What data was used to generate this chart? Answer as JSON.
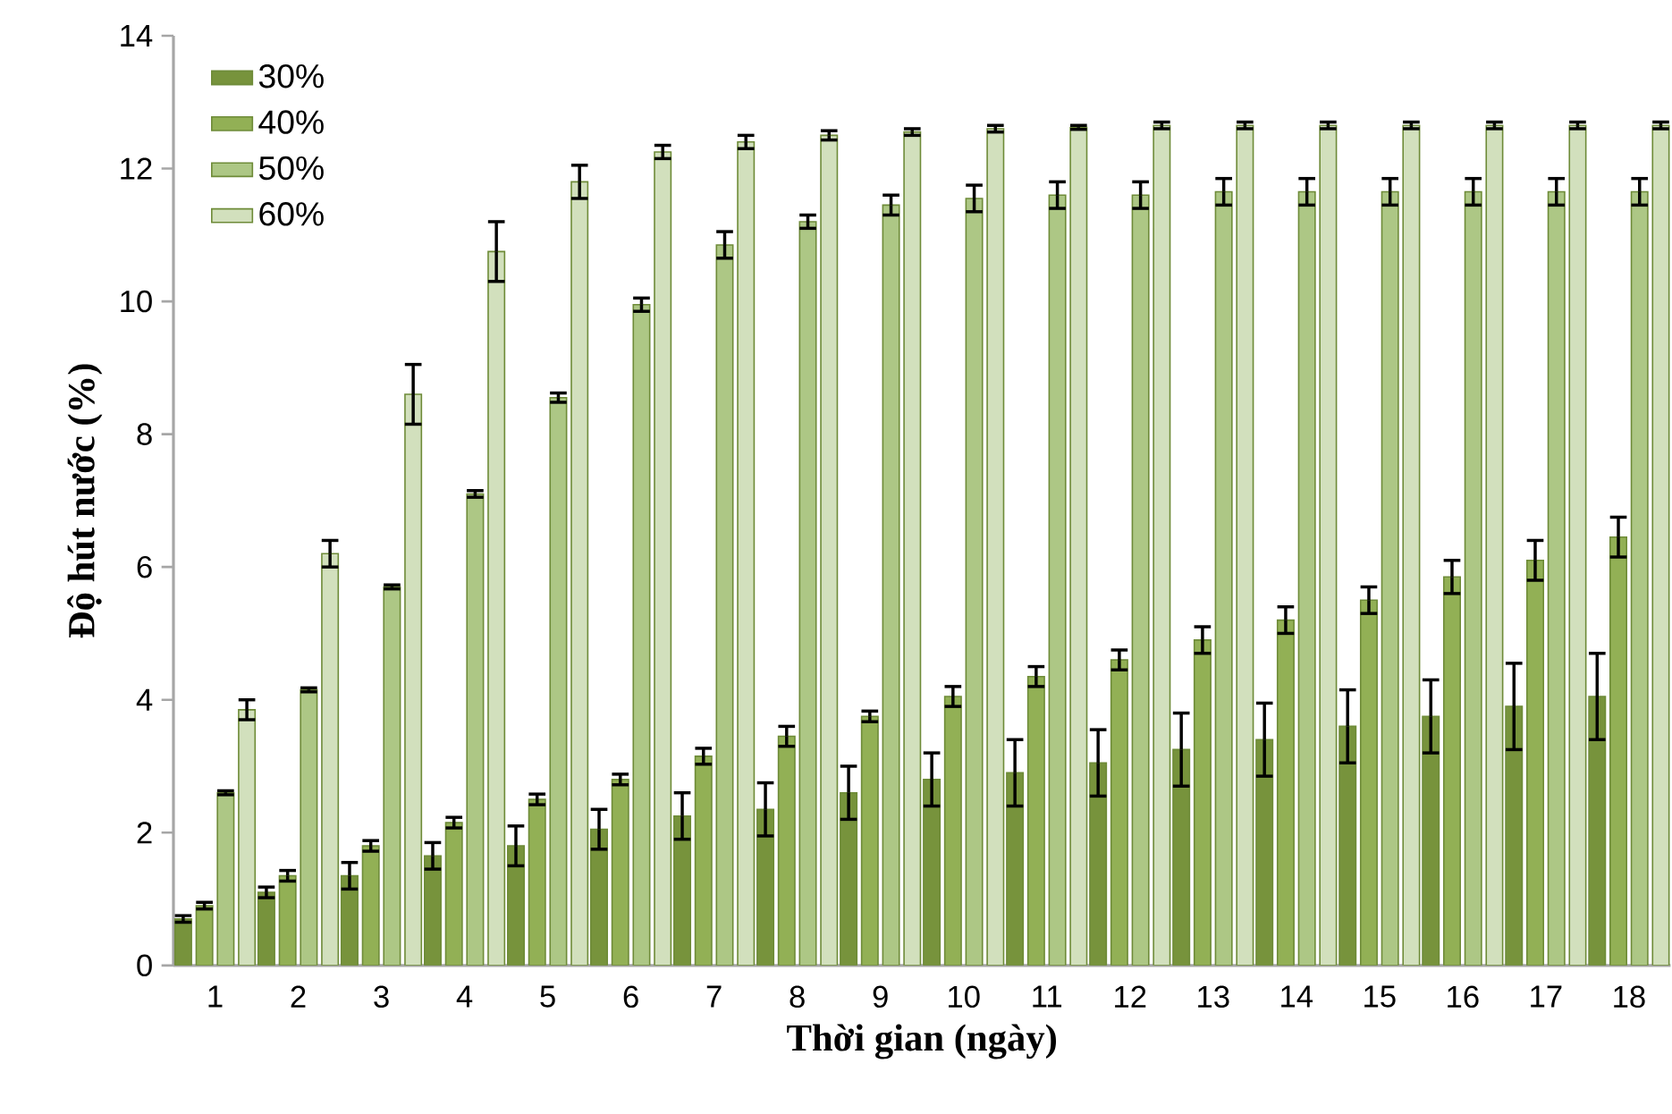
{
  "chart_data": {
    "type": "bar",
    "xlabel": "Thời gian (ngày)",
    "ylabel": "Độ hút nước (%)",
    "categories": [
      "1",
      "2",
      "3",
      "4",
      "5",
      "6",
      "7",
      "8",
      "9",
      "10",
      "11",
      "12",
      "13",
      "14",
      "15",
      "16",
      "17",
      "18"
    ],
    "series": [
      {
        "name": "30%",
        "color": "#77933c",
        "values": [
          0.7,
          1.1,
          1.35,
          1.65,
          1.8,
          2.05,
          2.25,
          2.35,
          2.6,
          2.8,
          2.9,
          3.05,
          3.25,
          3.4,
          3.6,
          3.75,
          3.9,
          4.05
        ],
        "errors": [
          0.05,
          0.08,
          0.2,
          0.2,
          0.3,
          0.3,
          0.35,
          0.4,
          0.4,
          0.4,
          0.5,
          0.5,
          0.55,
          0.55,
          0.55,
          0.55,
          0.65,
          0.65
        ]
      },
      {
        "name": "40%",
        "color": "#92b055",
        "values": [
          0.9,
          1.35,
          1.8,
          2.15,
          2.5,
          2.8,
          3.15,
          3.45,
          3.75,
          4.05,
          4.35,
          4.6,
          4.9,
          5.2,
          5.5,
          5.85,
          6.1,
          6.45
        ],
        "errors": [
          0.05,
          0.08,
          0.08,
          0.08,
          0.08,
          0.08,
          0.12,
          0.15,
          0.08,
          0.15,
          0.15,
          0.15,
          0.2,
          0.2,
          0.2,
          0.25,
          0.3,
          0.3
        ]
      },
      {
        "name": "50%",
        "color": "#adc785",
        "values": [
          2.6,
          4.15,
          5.7,
          7.1,
          8.55,
          9.95,
          10.85,
          11.2,
          11.45,
          11.55,
          11.6,
          11.6,
          11.65,
          11.65,
          11.65,
          11.65,
          11.65,
          11.65
        ],
        "errors": [
          0.03,
          0.03,
          0.03,
          0.05,
          0.07,
          0.1,
          0.2,
          0.1,
          0.15,
          0.2,
          0.2,
          0.2,
          0.2,
          0.2,
          0.2,
          0.2,
          0.2,
          0.2
        ]
      },
      {
        "name": "60%",
        "color": "#d2e0bd",
        "values": [
          3.85,
          6.2,
          8.6,
          10.75,
          11.8,
          12.25,
          12.4,
          12.5,
          12.55,
          12.6,
          12.62,
          12.65,
          12.65,
          12.65,
          12.65,
          12.65,
          12.65,
          12.65
        ],
        "errors": [
          0.15,
          0.2,
          0.45,
          0.45,
          0.25,
          0.1,
          0.1,
          0.07,
          0.05,
          0.05,
          0.03,
          0.05,
          0.05,
          0.05,
          0.05,
          0.05,
          0.05,
          0.05
        ]
      }
    ],
    "ylim": [
      0,
      14
    ],
    "yticks": [
      0,
      2,
      4,
      6,
      8,
      10,
      12,
      14
    ],
    "grid": false,
    "legend": "top left"
  }
}
